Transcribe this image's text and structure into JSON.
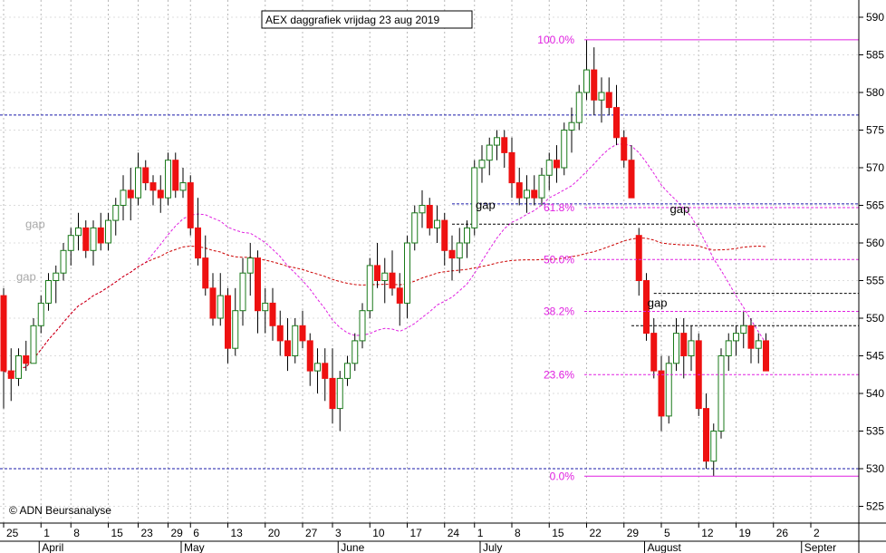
{
  "chart_data": {
    "type": "candlestick",
    "title": "AEX daggrafiek vrijdag 23 aug 2019",
    "copyright": "© ADN Beursanalyse",
    "ylim": [
      521,
      592
    ],
    "y_ticks": [
      525,
      530,
      535,
      540,
      545,
      550,
      555,
      560,
      565,
      570,
      575,
      580,
      585,
      590
    ],
    "day_ticks": [
      {
        "label": "25",
        "i": 0
      },
      {
        "label": "1",
        "i": 5
      },
      {
        "label": "8",
        "i": 9
      },
      {
        "label": "15",
        "i": 14
      },
      {
        "label": "23",
        "i": 18
      },
      {
        "label": "29",
        "i": 22
      },
      {
        "label": "6",
        "i": 25
      },
      {
        "label": "13",
        "i": 30
      },
      {
        "label": "20",
        "i": 35
      },
      {
        "label": "27",
        "i": 40
      },
      {
        "label": "3",
        "i": 44
      },
      {
        "label": "10",
        "i": 49
      },
      {
        "label": "17",
        "i": 54
      },
      {
        "label": "24",
        "i": 59
      },
      {
        "label": "1",
        "i": 63
      },
      {
        "label": "8",
        "i": 68
      },
      {
        "label": "15",
        "i": 73
      },
      {
        "label": "22",
        "i": 78
      },
      {
        "label": "29",
        "i": 83
      },
      {
        "label": "5",
        "i": 88
      },
      {
        "label": "12",
        "i": 93
      },
      {
        "label": "19",
        "i": 98
      },
      {
        "label": "26",
        "i": 103
      },
      {
        "label": "2",
        "i": 108
      }
    ],
    "month_ticks": [
      {
        "label": "April",
        "i": 5
      },
      {
        "label": "May",
        "i": 24
      },
      {
        "label": "June",
        "i": 45
      },
      {
        "label": "July",
        "i": 64
      },
      {
        "label": "August",
        "i": 86
      },
      {
        "label": "Septer",
        "i": 107
      }
    ],
    "candles": [
      [
        553,
        554,
        538,
        543
      ],
      [
        543,
        546,
        539,
        542
      ],
      [
        542,
        546,
        541,
        545
      ],
      [
        545,
        547,
        543,
        544
      ],
      [
        544,
        550,
        544,
        549
      ],
      [
        549,
        553,
        548,
        552
      ],
      [
        552,
        556,
        551,
        555
      ],
      [
        555,
        557,
        552,
        556
      ],
      [
        556,
        560,
        555,
        559
      ],
      [
        559,
        562,
        557,
        561
      ],
      [
        561,
        564,
        559,
        562
      ],
      [
        562,
        563,
        558,
        559
      ],
      [
        559,
        563,
        557,
        562
      ],
      [
        562,
        564,
        559,
        560
      ],
      [
        560,
        564,
        559,
        563
      ],
      [
        563,
        566,
        561,
        565
      ],
      [
        565,
        569,
        563,
        567
      ],
      [
        567,
        570,
        563,
        566
      ],
      [
        566,
        572,
        565,
        570
      ],
      [
        570,
        571,
        567,
        568
      ],
      [
        568,
        569,
        565,
        567
      ],
      [
        567,
        569,
        564,
        566
      ],
      [
        566,
        572,
        565,
        571
      ],
      [
        571,
        572,
        566,
        567
      ],
      [
        567,
        570,
        566,
        568
      ],
      [
        568,
        569,
        561,
        562
      ],
      [
        562,
        566,
        557,
        558
      ],
      [
        558,
        561,
        553,
        554
      ],
      [
        554,
        556,
        549,
        550
      ],
      [
        550,
        556,
        549,
        553
      ],
      [
        553,
        554,
        544,
        546
      ],
      [
        546,
        554,
        545,
        551
      ],
      [
        551,
        558,
        549,
        556
      ],
      [
        556,
        560,
        553,
        558
      ],
      [
        558,
        559,
        548,
        551
      ],
      [
        551,
        554,
        548,
        552
      ],
      [
        552,
        554,
        547,
        549
      ],
      [
        549,
        551,
        545,
        547
      ],
      [
        547,
        550,
        543,
        545
      ],
      [
        545,
        550,
        544,
        549
      ],
      [
        549,
        551,
        546,
        547
      ],
      [
        547,
        548,
        541,
        543
      ],
      [
        543,
        546,
        540,
        544
      ],
      [
        544,
        546,
        539,
        542
      ],
      [
        542,
        546,
        536,
        538
      ],
      [
        538,
        543,
        535,
        542
      ],
      [
        542,
        545,
        541,
        544
      ],
      [
        544,
        548,
        543,
        547
      ],
      [
        547,
        552,
        546,
        551
      ],
      [
        551,
        558,
        550,
        557
      ],
      [
        557,
        560,
        554,
        555
      ],
      [
        555,
        558,
        552,
        556
      ],
      [
        556,
        559,
        553,
        554
      ],
      [
        554,
        556,
        549,
        552
      ],
      [
        552,
        561,
        550,
        560
      ],
      [
        560,
        565,
        559,
        564
      ],
      [
        564,
        567,
        562,
        565
      ],
      [
        565,
        566,
        561,
        562
      ],
      [
        562,
        565,
        560,
        563
      ],
      [
        563,
        564,
        557,
        559
      ],
      [
        559,
        561,
        555,
        558
      ],
      [
        558,
        562,
        556,
        560
      ],
      [
        560,
        563,
        558,
        562
      ],
      [
        562,
        571,
        561,
        570
      ],
      [
        570,
        573,
        568,
        571
      ],
      [
        571,
        574,
        569,
        573
      ],
      [
        573,
        575,
        571,
        574
      ],
      [
        574,
        575,
        570,
        572
      ],
      [
        572,
        574,
        566,
        568
      ],
      [
        568,
        570,
        565,
        566
      ],
      [
        566,
        569,
        564,
        567
      ],
      [
        567,
        569,
        565,
        566
      ],
      [
        566,
        570,
        565,
        569
      ],
      [
        569,
        572,
        567,
        571
      ],
      [
        571,
        573,
        568,
        570
      ],
      [
        570,
        576,
        569,
        575
      ],
      [
        575,
        578,
        572,
        576
      ],
      [
        576,
        581,
        575,
        580
      ],
      [
        580,
        587,
        579,
        583
      ],
      [
        583,
        586,
        577,
        579
      ],
      [
        579,
        582,
        576,
        580
      ],
      [
        580,
        582,
        577,
        578
      ],
      [
        578,
        581,
        573,
        574
      ],
      [
        574,
        575,
        570,
        571
      ],
      [
        571,
        573,
        566,
        566
      ],
      [
        561,
        562,
        553,
        555
      ],
      [
        555,
        556,
        547,
        548
      ],
      [
        548,
        550,
        542,
        543
      ],
      [
        543,
        545,
        535,
        537
      ],
      [
        537,
        545,
        536,
        544
      ],
      [
        544,
        550,
        543,
        548
      ],
      [
        548,
        550,
        542,
        545
      ],
      [
        545,
        549,
        543,
        547
      ],
      [
        547,
        548,
        537,
        538
      ],
      [
        538,
        540,
        530,
        531
      ],
      [
        531,
        536,
        529,
        535
      ],
      [
        535,
        546,
        534,
        545
      ],
      [
        545,
        548,
        543,
        547
      ],
      [
        547,
        549,
        545,
        548
      ],
      [
        548,
        551,
        546,
        549
      ],
      [
        549,
        550,
        544,
        546
      ],
      [
        546,
        548,
        544,
        547
      ],
      [
        547,
        548,
        543,
        543
      ]
    ],
    "fibonacci": [
      {
        "label": "100.0%",
        "value": 587
      },
      {
        "label": "61.8%",
        "value": 564.7
      },
      {
        "label": "50.0%",
        "value": 557.8
      },
      {
        "label": "38.2%",
        "value": 550.9
      },
      {
        "label": "23.6%",
        "value": 542.5
      },
      {
        "label": "0.0%",
        "value": 529
      }
    ],
    "gap_labels": [
      {
        "text": "gap",
        "i": 0,
        "y": 562,
        "color": "#aaaaaa"
      },
      {
        "text": "gap",
        "i": 0,
        "y": 555,
        "color": "#aaaaaa"
      },
      {
        "text": "gap",
        "i": 60,
        "y": 564.5,
        "color": "#000000"
      },
      {
        "text": "gap",
        "i": 86,
        "y": 564,
        "color": "#000000"
      },
      {
        "text": "gap",
        "i": 83,
        "y": 551.5,
        "color": "#000000"
      }
    ]
  }
}
